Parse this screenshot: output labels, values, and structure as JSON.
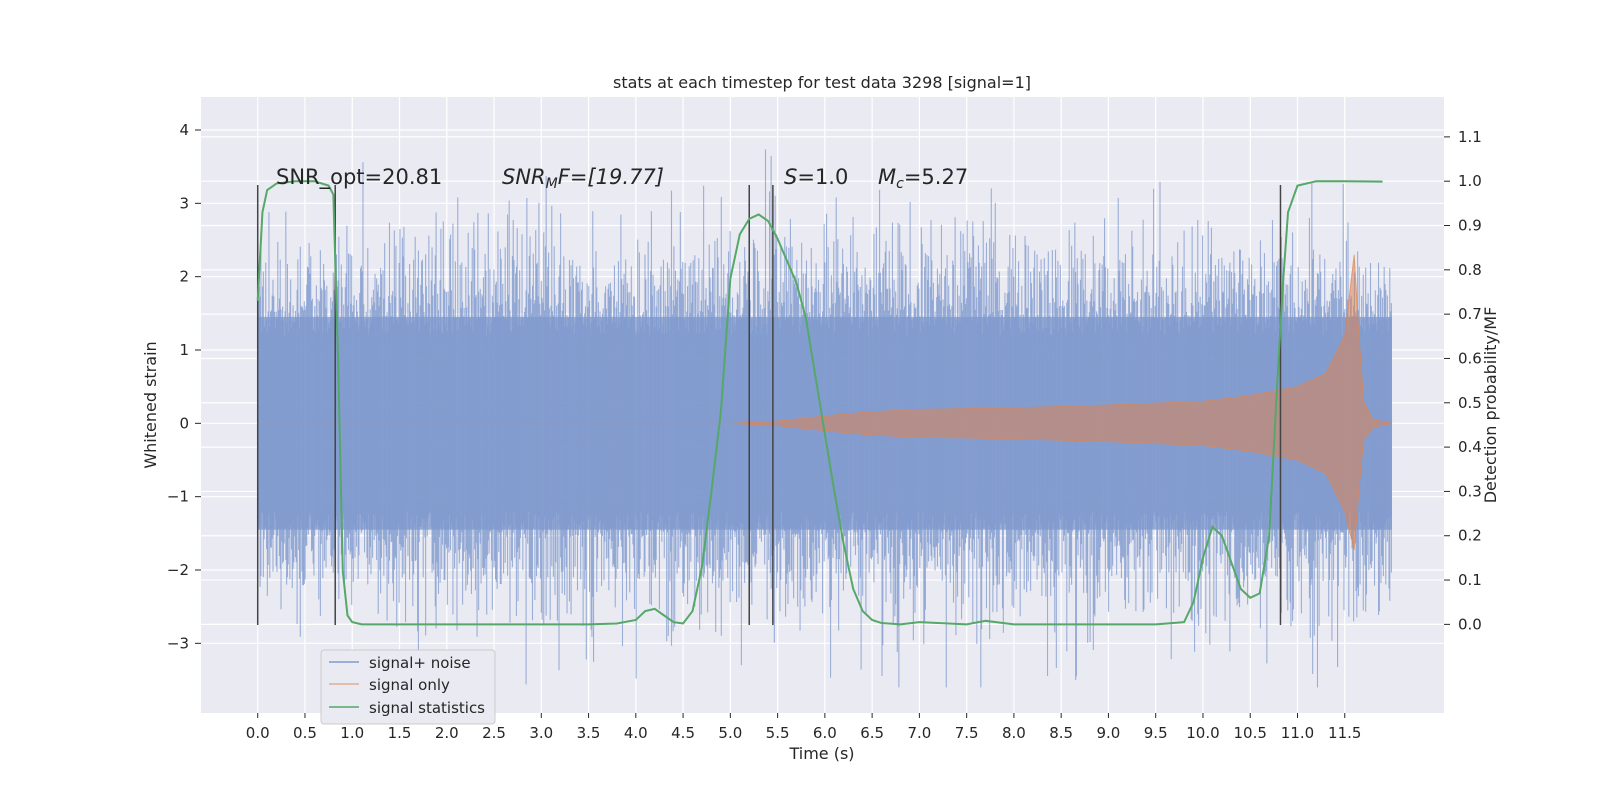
{
  "chart_data": {
    "type": "line",
    "title": "stats at each timestep for test data 3298 [signal=1]",
    "xlabel": "Time (s)",
    "ylabel": "Whitened strain",
    "y2label": "Detection probability/MF",
    "xlim": [
      -0.6,
      12.55
    ],
    "ylim": [
      -3.95,
      4.45
    ],
    "y2lim": [
      -0.2,
      1.19
    ],
    "xticks": [
      "0.0",
      "0.5",
      "1.0",
      "1.5",
      "2.0",
      "2.5",
      "3.0",
      "3.5",
      "4.0",
      "4.5",
      "5.0",
      "5.5",
      "6.0",
      "6.5",
      "7.0",
      "7.5",
      "8.0",
      "8.5",
      "9.0",
      "9.5",
      "10.0",
      "10.5",
      "11.0",
      "11.5"
    ],
    "yticks": [
      "4",
      "3",
      "2",
      "1",
      "0",
      "−1",
      "−2",
      "−3"
    ],
    "y2ticks": [
      "1.1",
      "1.0",
      "0.9",
      "0.8",
      "0.7",
      "0.6",
      "0.5",
      "0.4",
      "0.3",
      "0.2",
      "0.1",
      "0.0"
    ],
    "grid": true,
    "legend_position": "lower-left",
    "annotations": {
      "snr_opt": "SNR_opt=20.81",
      "snr_mf_symbol": "SNR",
      "snr_mf_sub": "M",
      "snr_mf_rest": "F=[19.77]",
      "s_symbol": "S",
      "s_rest": "=1.0",
      "mc_symbol": "M",
      "mc_sub": "c",
      "mc_rest": "=5.27"
    },
    "vertical_lines_x": [
      0.0,
      0.82,
      5.2,
      5.45,
      10.82
    ],
    "vertical_lines_range": [
      -2.75,
      3.25
    ],
    "series": [
      {
        "name": "signal+ noise",
        "color": "#7f9ace",
        "x_range": [
          0.0,
          12.0
        ],
        "envelope_1sigma": 1.45,
        "peak_range": [
          -3.6,
          4.1
        ]
      },
      {
        "name": "signal only",
        "color": "#dd8452",
        "envelope": [
          [
            0.0,
            0.0
          ],
          [
            5.0,
            0.0
          ],
          [
            5.5,
            0.03
          ],
          [
            6.0,
            0.1
          ],
          [
            6.5,
            0.16
          ],
          [
            7.0,
            0.19
          ],
          [
            8.0,
            0.21
          ],
          [
            9.0,
            0.25
          ],
          [
            10.0,
            0.3
          ],
          [
            10.5,
            0.38
          ],
          [
            11.0,
            0.5
          ],
          [
            11.3,
            0.68
          ],
          [
            11.5,
            1.2
          ],
          [
            11.6,
            2.3
          ],
          [
            11.65,
            1.2
          ],
          [
            11.7,
            0.3
          ],
          [
            11.8,
            0.05
          ],
          [
            12.0,
            0.0
          ]
        ]
      },
      {
        "name": "signal statistics",
        "color": "#55a868",
        "axis": "right",
        "x": [
          0.0,
          0.05,
          0.1,
          0.2,
          0.4,
          0.6,
          0.75,
          0.8,
          0.85,
          0.9,
          0.95,
          1.0,
          1.1,
          1.5,
          2.0,
          2.5,
          3.0,
          3.5,
          3.8,
          4.0,
          4.1,
          4.2,
          4.3,
          4.4,
          4.5,
          4.6,
          4.7,
          4.8,
          4.9,
          5.0,
          5.1,
          5.2,
          5.3,
          5.4,
          5.5,
          5.6,
          5.7,
          5.8,
          5.9,
          6.0,
          6.1,
          6.2,
          6.3,
          6.4,
          6.5,
          6.6,
          6.8,
          7.0,
          7.5,
          7.7,
          8.0,
          8.5,
          9.0,
          9.5,
          9.8,
          9.9,
          10.0,
          10.1,
          10.2,
          10.3,
          10.4,
          10.5,
          10.6,
          10.7,
          10.8,
          10.85,
          10.9,
          11.0,
          11.2,
          11.5,
          11.9
        ],
        "y": [
          0.73,
          0.93,
          0.98,
          0.995,
          1.0,
          1.0,
          0.99,
          0.97,
          0.6,
          0.12,
          0.02,
          0.005,
          0.0,
          0.0,
          0.0,
          0.0,
          0.0,
          0.0,
          0.002,
          0.01,
          0.03,
          0.035,
          0.02,
          0.005,
          0.002,
          0.03,
          0.13,
          0.3,
          0.48,
          0.78,
          0.88,
          0.915,
          0.925,
          0.91,
          0.87,
          0.82,
          0.77,
          0.69,
          0.56,
          0.43,
          0.3,
          0.18,
          0.08,
          0.03,
          0.01,
          0.003,
          0.0,
          0.005,
          0.0,
          0.008,
          0.0,
          0.0,
          0.0,
          0.0,
          0.005,
          0.05,
          0.15,
          0.22,
          0.2,
          0.14,
          0.08,
          0.06,
          0.07,
          0.2,
          0.6,
          0.78,
          0.93,
          0.99,
          1.0,
          1.0,
          0.999
        ]
      }
    ]
  }
}
